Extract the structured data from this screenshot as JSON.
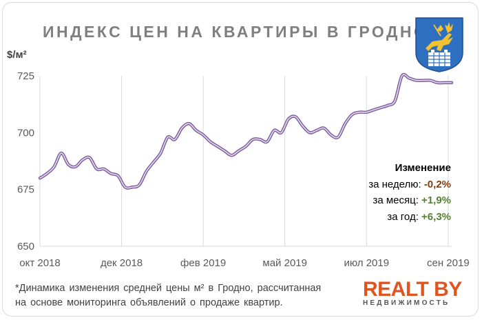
{
  "title": "ИНДЕКС ЦЕН НА КВАРТИРЫ В ГРОДНО",
  "unit": "$/м²",
  "changes": {
    "header": "Изменение",
    "items": [
      {
        "label": "за неделю:",
        "value": "-0,2%",
        "tone": "negative"
      },
      {
        "label": "за месяц:",
        "value": "+1,9%",
        "tone": "positive"
      },
      {
        "label": "за год:",
        "value": "+6,3%",
        "tone": "positive"
      }
    ]
  },
  "footnote": {
    "line1": "*Динамика изменения средней цены м² в Гродно, рассчитанная",
    "line2": "на основе мониторинга объявлений о продаже квартир."
  },
  "logo": {
    "main": "REALT BY",
    "sub": "НЕДВИЖИМОСТЬ"
  },
  "colors": {
    "line": "#7d5c9c",
    "line_inner": "#e6dcef",
    "grid": "#d9d9d9"
  },
  "chart_data": {
    "type": "line",
    "ylabel": "$/м²",
    "ylim": [
      650,
      725
    ],
    "yticks": [
      650,
      675,
      700,
      725
    ],
    "xlim": [
      0,
      58
    ],
    "xticks": [
      {
        "x": 0,
        "label": "окт 2018"
      },
      {
        "x": 11.5,
        "label": "дек 2018"
      },
      {
        "x": 23,
        "label": "фев 2019"
      },
      {
        "x": 34.5,
        "label": "май 2019"
      },
      {
        "x": 46,
        "label": "июл 2019"
      },
      {
        "x": 57.5,
        "label": "сен 2019"
      }
    ],
    "grid": "vertical",
    "series": [
      {
        "x": [
          0,
          1,
          2,
          3,
          4,
          5,
          6,
          7,
          8,
          9,
          10,
          11,
          12,
          13,
          14,
          15,
          16,
          17,
          18,
          19,
          20,
          21,
          22,
          23,
          24,
          25,
          26,
          27,
          28,
          29,
          30,
          31,
          32,
          33,
          34,
          35,
          36,
          37,
          38,
          39,
          40,
          41,
          42,
          43,
          44,
          45,
          46,
          47,
          48,
          49,
          50,
          51,
          52,
          53,
          54,
          55,
          56,
          57,
          58
        ],
        "values": [
          680,
          682,
          685,
          691,
          686,
          685,
          688,
          689,
          684,
          684,
          682,
          681,
          676,
          676,
          677,
          683,
          687,
          691,
          698,
          697,
          702,
          704,
          701,
          699,
          696,
          694,
          692,
          690,
          692,
          694,
          697,
          697,
          696,
          701,
          700,
          706,
          707,
          703,
          700,
          701,
          702,
          699,
          698,
          704,
          708,
          709,
          709,
          710,
          711,
          712,
          714,
          725,
          724,
          723,
          723,
          723,
          722,
          722,
          722
        ]
      }
    ]
  }
}
